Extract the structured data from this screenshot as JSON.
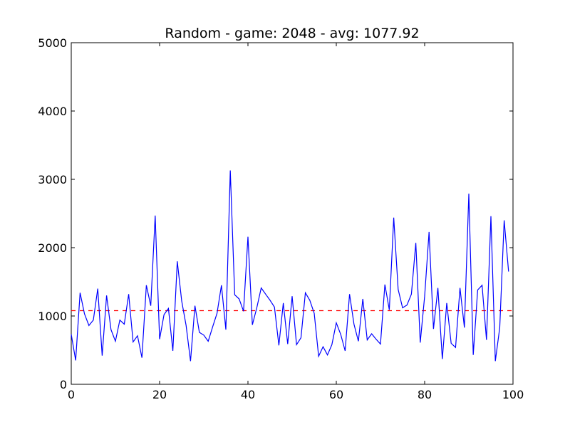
{
  "chart_data": {
    "type": "line",
    "title": "Random - game: 2048 - avg: 1077.92",
    "xlabel": "",
    "ylabel": "",
    "xlim": [
      0,
      100
    ],
    "ylim": [
      0,
      5000
    ],
    "xticks": [
      0,
      20,
      40,
      60,
      80,
      100
    ],
    "yticks": [
      0,
      1000,
      2000,
      3000,
      4000,
      5000
    ],
    "grid": false,
    "series": [
      {
        "color": "#0000ff",
        "x": [
          0,
          1,
          2,
          3,
          4,
          5,
          6,
          7,
          8,
          9,
          10,
          11,
          12,
          13,
          14,
          15,
          16,
          17,
          18,
          19,
          20,
          21,
          22,
          23,
          24,
          25,
          26,
          27,
          28,
          29,
          30,
          31,
          32,
          33,
          34,
          35,
          36,
          37,
          38,
          39,
          40,
          41,
          42,
          43,
          44,
          45,
          46,
          47,
          48,
          49,
          50,
          51,
          52,
          53,
          54,
          55,
          56,
          57,
          58,
          59,
          60,
          61,
          62,
          63,
          64,
          65,
          66,
          67,
          68,
          69,
          70,
          71,
          72,
          73,
          74,
          75,
          76,
          77,
          78,
          79,
          80,
          81,
          82,
          83,
          84,
          85,
          86,
          87,
          88,
          89,
          90,
          91,
          92,
          93,
          94,
          95,
          96,
          97,
          98,
          99
        ],
        "values": [
          730,
          350,
          1340,
          1030,
          860,
          940,
          1400,
          420,
          1300,
          800,
          630,
          940,
          880,
          1320,
          620,
          710,
          390,
          1450,
          1150,
          2470,
          660,
          1020,
          1110,
          490,
          1800,
          1220,
          860,
          340,
          1150,
          760,
          720,
          630,
          840,
          1040,
          1450,
          800,
          3130,
          1310,
          1250,
          1070,
          2160,
          870,
          1120,
          1410,
          1320,
          1230,
          1130,
          570,
          1190,
          590,
          1290,
          580,
          680,
          1340,
          1230,
          1040,
          410,
          550,
          430,
          580,
          900,
          730,
          490,
          1320,
          880,
          630,
          1250,
          650,
          740,
          660,
          590,
          1460,
          1090,
          2440,
          1390,
          1120,
          1160,
          1320,
          2070,
          610,
          1290,
          2230,
          810,
          1410,
          370,
          1190,
          600,
          540,
          1410,
          830,
          2790,
          430,
          1380,
          1450,
          650,
          2460,
          340,
          830,
          2400,
          1650
        ]
      },
      {
        "name": "avg",
        "color": "#ff0000",
        "style": "dashed",
        "values": [
          1077.92
        ]
      }
    ]
  }
}
